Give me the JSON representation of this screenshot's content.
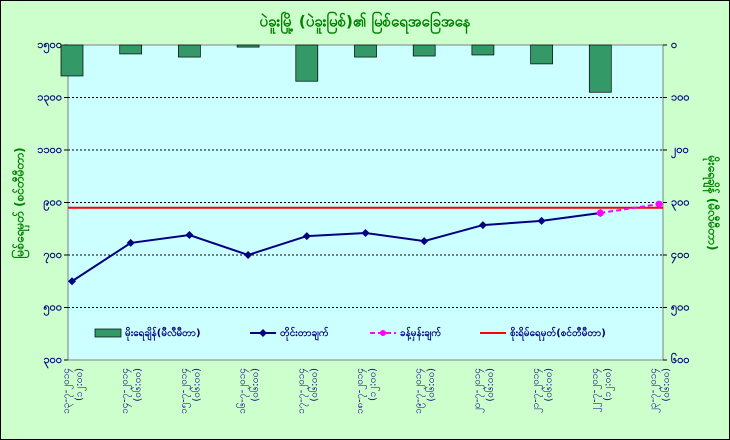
{
  "chart_data": {
    "type": "combo",
    "title": "ပဲခူးမြို့ (ပဲခူးမြစ်)၏ မြစ်ရေအခြေအနေ",
    "ylabel": "မြစ်ရေမှတ် (စင်တီမီတာ)",
    "y2label": "မိုးရေချိန် (မီလီမီတာ)",
    "categories": [
      "၁၃-၇-၂၀၁၄ (၁၂:၀၀)",
      "၁၄-၇-၂၀၁၄ (၀၆:၀၀)",
      "၁၅-၇-၂၀၁၄ (၀၆:၀၀)",
      "၁၆-၇-၂၀၁၄ (၀၆:၀၀)",
      "၁၇-၇-၂၀၁၄ (၀၆:၀၀)",
      "၁၈-၇-၂၀၁၄ (၁၂:၀၀)",
      "၁၉-၇-၂၀၁၄ (၀၆:၀၀)",
      "၂၀-၇-၂၀၁၄ (၀၆:၀၀)",
      "၂၁-၇-၂၀၁၄ (၀၆:၀၀)",
      "၂၂-၇-၂၀၁၄ (၁၂:၀၀)",
      "၂၃-၇-၂၀၁၄ (၀၆:၀၀)"
    ],
    "series": [
      {
        "name": "မိုးရေချိန်(မီလီမီတာ)",
        "kind": "bar",
        "axis": "y2",
        "color": "#339966",
        "values": [
          59,
          17,
          23,
          4,
          69,
          23,
          21,
          19,
          36,
          90,
          null
        ]
      },
      {
        "name": "တိုင်းတာချက်",
        "kind": "line",
        "color": "#000080",
        "values": [
          600,
          746,
          776,
          700,
          772,
          784,
          753,
          814,
          830,
          860,
          null
        ]
      },
      {
        "name": "ခန့်မှန်းချက်",
        "kind": "dashed",
        "color": "#ff00ff",
        "values": [
          null,
          null,
          null,
          null,
          null,
          null,
          null,
          null,
          null,
          860,
          894
        ]
      }
    ],
    "danger_level": {
      "name": "စိုးရိမ်ရေမှတ်(စင်တီမီတာ)",
      "value": 880,
      "color": "#ff0000"
    },
    "ylim": [
      300,
      1500
    ],
    "yticks": [
      {
        "value": 300,
        "label": "၃၀၀"
      },
      {
        "value": 500,
        "label": "၅၀၀"
      },
      {
        "value": 700,
        "label": "၇၀၀"
      },
      {
        "value": 900,
        "label": "၉၀၀"
      },
      {
        "value": 1100,
        "label": "၁၁၀၀"
      },
      {
        "value": 1300,
        "label": "၁၃၀၀"
      },
      {
        "value": 1500,
        "label": "၁၅၀၀"
      }
    ],
    "y2lim": [
      0,
      600
    ],
    "y2_reversed": true,
    "y2ticks": [
      {
        "value": 0,
        "label": "၀"
      },
      {
        "value": 100,
        "label": "၁၀၀"
      },
      {
        "value": 200,
        "label": "၂၀၀"
      },
      {
        "value": 300,
        "label": "၃၀၀"
      },
      {
        "value": 400,
        "label": "၄၀၀"
      },
      {
        "value": 500,
        "label": "၅၀၀"
      },
      {
        "value": 600,
        "label": "၆၀၀"
      }
    ],
    "grid": true
  }
}
